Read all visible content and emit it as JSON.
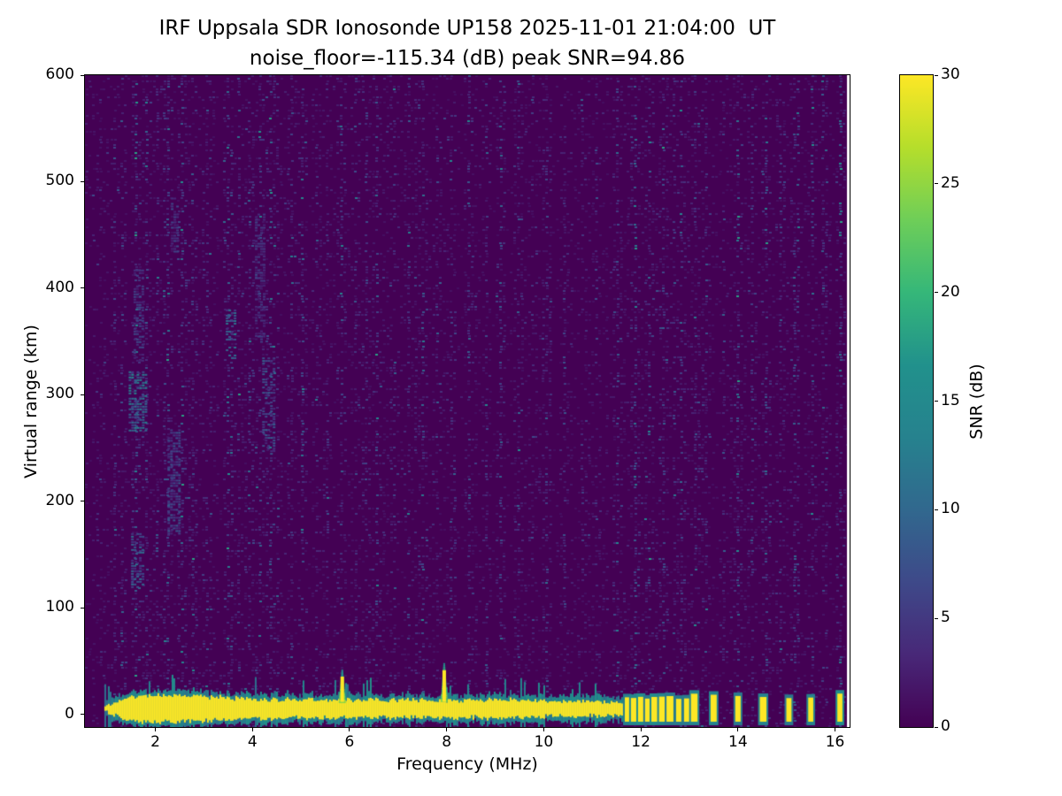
{
  "chart_data": {
    "type": "heatmap",
    "title": "IRF Uppsala SDR Ionosonde UP158 2025-11-01 21:04:00  UT",
    "subtitle": "noise_floor=-115.34 (dB) peak SNR=94.86",
    "xlabel": "Frequency (MHz)",
    "ylabel": "Virtual range (km)",
    "xlim": [
      0.55,
      16.3
    ],
    "ylim": [
      -12,
      600
    ],
    "x_ticks": [
      2,
      4,
      6,
      8,
      10,
      12,
      14,
      16
    ],
    "y_ticks": [
      0,
      100,
      200,
      300,
      400,
      500,
      600
    ],
    "noise_floor_db": -115.34,
    "peak_snr_db": 94.86,
    "colorbar": {
      "label": "SNR (dB)",
      "min": 0,
      "max": 30,
      "ticks": [
        0,
        5,
        10,
        15,
        20,
        25,
        30
      ],
      "colormap": "viridis",
      "stops": [
        "#440154",
        "#482878",
        "#3e4989",
        "#31688e",
        "#26828e",
        "#21918c",
        "#35b779",
        "#6ece58",
        "#b5de2b",
        "#fde725"
      ]
    },
    "features": {
      "background_snr_range_db": [
        0,
        4
      ],
      "ground_echo_band": {
        "center_km": 5,
        "typical_half_width_km": 9,
        "snr_db": 30,
        "freq_range_mhz": [
          0.95,
          11.65
        ]
      },
      "ground_echo_pulses_mhz": [
        11.72,
        11.86,
        12.0,
        12.14,
        12.28,
        12.44,
        12.6,
        12.78,
        12.95,
        13.1,
        13.5,
        14.0,
        14.52,
        15.05,
        15.5,
        16.1
      ],
      "spikes": [
        {
          "freq_mhz": 5.85,
          "top_km": 42
        },
        {
          "freq_mhz": 7.95,
          "top_km": 48
        }
      ],
      "rfi_lines": [
        [
          1.35,
          3
        ],
        [
          1.6,
          4
        ],
        [
          1.8,
          3
        ],
        [
          2.05,
          2
        ],
        [
          2.3,
          4
        ],
        [
          2.55,
          5
        ],
        [
          2.8,
          3
        ],
        [
          3.1,
          2
        ],
        [
          3.5,
          4
        ],
        [
          3.75,
          2
        ],
        [
          3.95,
          3
        ],
        [
          4.15,
          3
        ],
        [
          4.35,
          4
        ],
        [
          4.55,
          2
        ],
        [
          4.8,
          2
        ],
        [
          5.05,
          3
        ],
        [
          5.3,
          2
        ],
        [
          5.55,
          2
        ],
        [
          5.85,
          3
        ],
        [
          6.1,
          2
        ],
        [
          6.35,
          2
        ],
        [
          6.6,
          3
        ],
        [
          6.9,
          2
        ],
        [
          7.2,
          2
        ],
        [
          7.5,
          3
        ],
        [
          7.8,
          2
        ],
        [
          8.1,
          3
        ],
        [
          8.45,
          2
        ],
        [
          8.8,
          2
        ],
        [
          9.1,
          3
        ],
        [
          9.5,
          2
        ],
        [
          9.8,
          2
        ],
        [
          10.1,
          2
        ],
        [
          10.45,
          3
        ],
        [
          10.8,
          2
        ],
        [
          11.1,
          2
        ],
        [
          11.5,
          3
        ],
        [
          11.9,
          4
        ],
        [
          12.2,
          4
        ],
        [
          12.5,
          3
        ],
        [
          12.8,
          4
        ],
        [
          13.1,
          3
        ],
        [
          13.35,
          3
        ],
        [
          13.7,
          2
        ],
        [
          14.0,
          4
        ],
        [
          14.3,
          3
        ],
        [
          14.6,
          3
        ],
        [
          14.9,
          2
        ],
        [
          15.2,
          3
        ],
        [
          15.5,
          3
        ],
        [
          15.8,
          2
        ],
        [
          16.1,
          3
        ]
      ],
      "diffuse_patches": [
        {
          "freq_mhz": [
            1.45,
            1.8
          ],
          "range_km": [
            265,
            322
          ],
          "snr_db": 12
        },
        {
          "freq_mhz": [
            1.5,
            1.72
          ],
          "range_km": [
            118,
            170
          ],
          "snr_db": 9
        },
        {
          "freq_mhz": [
            1.55,
            1.75
          ],
          "range_km": [
            330,
            420
          ],
          "snr_db": 6
        },
        {
          "freq_mhz": [
            2.25,
            2.5
          ],
          "range_km": [
            170,
            270
          ],
          "snr_db": 7
        },
        {
          "freq_mhz": [
            2.32,
            2.48
          ],
          "range_km": [
            435,
            485
          ],
          "snr_db": 6
        },
        {
          "freq_mhz": [
            3.45,
            3.62
          ],
          "range_km": [
            335,
            380
          ],
          "snr_db": 11
        },
        {
          "freq_mhz": [
            4.2,
            4.45
          ],
          "range_km": [
            245,
            335
          ],
          "snr_db": 8
        },
        {
          "freq_mhz": [
            4.05,
            4.25
          ],
          "range_km": [
            350,
            470
          ],
          "snr_db": 5
        }
      ],
      "data_gap_right": true
    }
  }
}
